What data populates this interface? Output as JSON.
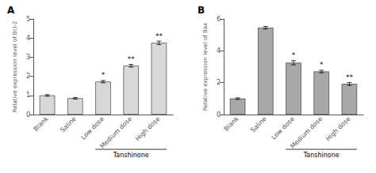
{
  "chart_data": [
    {
      "type": "bar",
      "title": "A",
      "ylabel": "Relative expression level of Bcl-2",
      "xlabel": "Tanshinone",
      "bracket": [
        "Low dose",
        "High dose"
      ],
      "categories": [
        "Blank",
        "Saline",
        "Low dose",
        "Medium dose",
        "High dose"
      ],
      "values": [
        1.0,
        0.85,
        1.72,
        2.55,
        3.75
      ],
      "errors": [
        0.04,
        0.04,
        0.06,
        0.07,
        0.09
      ],
      "annotations": [
        null,
        null,
        "*",
        "**",
        "**"
      ],
      "color": "#d8d8d8",
      "ylim": [
        0,
        5
      ],
      "yticks": [
        0,
        1,
        2,
        3,
        4,
        5
      ],
      "grid": false
    },
    {
      "type": "bar",
      "title": "B",
      "ylabel": "Relative expression level of Bax",
      "xlabel": "Tanshinone",
      "bracket": [
        "Low dose",
        "High dose"
      ],
      "categories": [
        "Blank",
        "Saline",
        "Low dose",
        "Medium dose",
        "High dose"
      ],
      "values": [
        1.0,
        5.45,
        3.25,
        2.7,
        1.92
      ],
      "errors": [
        0.05,
        0.08,
        0.13,
        0.08,
        0.09
      ],
      "annotations": [
        null,
        null,
        "*",
        "*",
        "**"
      ],
      "color": "#a8a8a8",
      "ylim": [
        0,
        6
      ],
      "yticks": [
        0,
        2,
        4,
        6
      ],
      "grid": false
    }
  ]
}
